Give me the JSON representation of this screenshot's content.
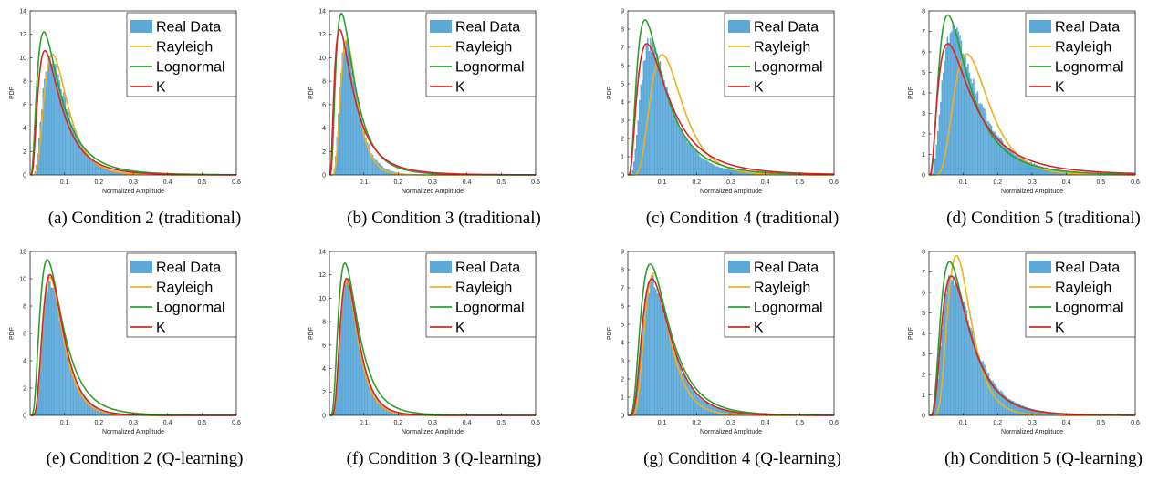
{
  "legend_labels": {
    "real": "Real Data",
    "rayleigh": "Rayleigh",
    "lognormal": "Lognormal",
    "k": "K"
  },
  "colors": {
    "real": "#5ba8d9",
    "rayleigh": "#edb120",
    "lognormal": "#2ca02c",
    "k": "#d62728"
  },
  "chart_data": [
    {
      "type": "line",
      "caption": "(a) Condition 2 (traditional)",
      "xlabel": "Normalized Amplitude",
      "ylabel": "PDF",
      "xlim": [
        0,
        0.6
      ],
      "ylim": [
        0,
        14
      ],
      "xticks": [
        0.1,
        0.2,
        0.3,
        0.4,
        0.5,
        0.6
      ],
      "yticks": [
        0,
        2,
        4,
        6,
        8,
        10,
        12,
        14
      ],
      "legend": "top-right",
      "real_data": {
        "mode": 0.06,
        "peak": 10.0,
        "sigma": 0.55
      },
      "series": [
        {
          "name": "Rayleigh",
          "mode": 0.065,
          "peak": 10.3,
          "sigma": 0.5
        },
        {
          "name": "Lognormal",
          "mode": 0.04,
          "peak": 12.2,
          "sigma": 0.75
        },
        {
          "name": "K",
          "mode": 0.043,
          "peak": 10.6,
          "sigma": 0.7
        }
      ]
    },
    {
      "type": "line",
      "caption": "(b) Condition 3 (traditional)",
      "xlabel": "Normalized Amplitude",
      "ylabel": "PDF",
      "xlim": [
        0,
        0.6
      ],
      "ylim": [
        0,
        14
      ],
      "xticks": [
        0.1,
        0.2,
        0.3,
        0.4,
        0.5,
        0.6
      ],
      "yticks": [
        0,
        2,
        4,
        6,
        8,
        10,
        12,
        14
      ],
      "legend": "top-right",
      "real_data": {
        "mode": 0.048,
        "peak": 11.2,
        "sigma": 0.5
      },
      "series": [
        {
          "name": "Rayleigh",
          "mode": 0.05,
          "peak": 11.5,
          "sigma": 0.45
        },
        {
          "name": "Lognormal",
          "mode": 0.035,
          "peak": 13.8,
          "sigma": 0.7
        },
        {
          "name": "K",
          "mode": 0.03,
          "peak": 12.4,
          "sigma": 0.8
        }
      ]
    },
    {
      "type": "line",
      "caption": "(c) Condition 4 (traditional)",
      "xlabel": "Normalized Amplitude",
      "ylabel": "PDF",
      "xlim": [
        0,
        0.6
      ],
      "ylim": [
        0,
        9
      ],
      "xticks": [
        0.1,
        0.2,
        0.3,
        0.4,
        0.5,
        0.6
      ],
      "yticks": [
        0,
        1,
        2,
        3,
        4,
        5,
        6,
        7,
        8,
        9
      ],
      "legend": "top-right",
      "real_data": {
        "mode": 0.065,
        "peak": 7.2,
        "sigma": 0.6
      },
      "series": [
        {
          "name": "Rayleigh",
          "mode": 0.1,
          "peak": 6.6,
          "sigma": 0.45
        },
        {
          "name": "Lognormal",
          "mode": 0.05,
          "peak": 8.5,
          "sigma": 0.72
        },
        {
          "name": "K",
          "mode": 0.055,
          "peak": 7.2,
          "sigma": 0.75
        }
      ]
    },
    {
      "type": "line",
      "caption": "(d) Condition 5 (traditional)",
      "xlabel": "Normalized Amplitude",
      "ylabel": "PDF",
      "xlim": [
        0,
        0.6
      ],
      "ylim": [
        0,
        8
      ],
      "xticks": [
        0.1,
        0.2,
        0.3,
        0.4,
        0.5,
        0.6
      ],
      "yticks": [
        0,
        1,
        2,
        3,
        4,
        5,
        6,
        7,
        8
      ],
      "legend": "top-right",
      "real_data": {
        "mode": 0.07,
        "peak": 7.0,
        "sigma": 0.65
      },
      "series": [
        {
          "name": "Rayleigh",
          "mode": 0.11,
          "peak": 5.9,
          "sigma": 0.45
        },
        {
          "name": "Lognormal",
          "mode": 0.055,
          "peak": 7.8,
          "sigma": 0.72
        },
        {
          "name": "K",
          "mode": 0.055,
          "peak": 6.4,
          "sigma": 0.8
        }
      ]
    },
    {
      "type": "line",
      "caption": "(e) Condition 2 (Q-learning)",
      "xlabel": "Normalized Amplitude",
      "ylabel": "PDF",
      "xlim": [
        0,
        0.6
      ],
      "ylim": [
        0,
        12
      ],
      "xticks": [
        0.1,
        0.2,
        0.3,
        0.4,
        0.5,
        0.6
      ],
      "yticks": [
        0,
        2,
        4,
        6,
        8,
        10,
        12
      ],
      "legend": "top-right",
      "real_data": {
        "mode": 0.058,
        "peak": 10.0,
        "sigma": 0.5
      },
      "series": [
        {
          "name": "Rayleigh",
          "mode": 0.058,
          "peak": 10.1,
          "sigma": 0.48
        },
        {
          "name": "Lognormal",
          "mode": 0.05,
          "peak": 11.4,
          "sigma": 0.62
        },
        {
          "name": "K",
          "mode": 0.058,
          "peak": 10.3,
          "sigma": 0.5
        }
      ]
    },
    {
      "type": "line",
      "caption": "(f) Condition 3 (Q-learning)",
      "xlabel": "Normalized Amplitude",
      "ylabel": "PDF",
      "xlim": [
        0,
        0.6
      ],
      "ylim": [
        0,
        14
      ],
      "xticks": [
        0.1,
        0.2,
        0.3,
        0.4,
        0.5,
        0.6
      ],
      "yticks": [
        0,
        2,
        4,
        6,
        8,
        10,
        12,
        14
      ],
      "legend": "top-right",
      "real_data": {
        "mode": 0.05,
        "peak": 11.3,
        "sigma": 0.5
      },
      "series": [
        {
          "name": "Rayleigh",
          "mode": 0.05,
          "peak": 11.5,
          "sigma": 0.48
        },
        {
          "name": "Lognormal",
          "mode": 0.045,
          "peak": 13.0,
          "sigma": 0.6
        },
        {
          "name": "K",
          "mode": 0.05,
          "peak": 11.7,
          "sigma": 0.5
        }
      ]
    },
    {
      "type": "line",
      "caption": "(g) Condition 4 (Q-learning)",
      "xlabel": "Normalized Amplitude",
      "ylabel": "PDF",
      "xlim": [
        0,
        0.6
      ],
      "ylim": [
        0,
        9
      ],
      "xticks": [
        0.1,
        0.2,
        0.3,
        0.4,
        0.5,
        0.6
      ],
      "yticks": [
        0,
        1,
        2,
        3,
        4,
        5,
        6,
        7,
        8,
        9
      ],
      "legend": "top-right",
      "real_data": {
        "mode": 0.07,
        "peak": 7.3,
        "sigma": 0.55
      },
      "series": [
        {
          "name": "Rayleigh",
          "mode": 0.075,
          "peak": 7.8,
          "sigma": 0.45
        },
        {
          "name": "Lognormal",
          "mode": 0.065,
          "peak": 8.3,
          "sigma": 0.6
        },
        {
          "name": "K",
          "mode": 0.07,
          "peak": 7.5,
          "sigma": 0.55
        }
      ]
    },
    {
      "type": "line",
      "caption": "(h) Condition 5 (Q-learning)",
      "xlabel": "Normalized Amplitude",
      "ylabel": "PDF",
      "xlim": [
        0,
        0.6
      ],
      "ylim": [
        0,
        8
      ],
      "xticks": [
        0.1,
        0.2,
        0.3,
        0.4,
        0.5,
        0.6
      ],
      "yticks": [
        0,
        1,
        2,
        3,
        4,
        5,
        6,
        7,
        8
      ],
      "legend": "top-right",
      "real_data": {
        "mode": 0.068,
        "peak": 6.8,
        "sigma": 0.6
      },
      "series": [
        {
          "name": "Rayleigh",
          "mode": 0.08,
          "peak": 7.8,
          "sigma": 0.42
        },
        {
          "name": "Lognormal",
          "mode": 0.06,
          "peak": 7.5,
          "sigma": 0.62
        },
        {
          "name": "K",
          "mode": 0.065,
          "peak": 6.8,
          "sigma": 0.6
        }
      ]
    }
  ]
}
